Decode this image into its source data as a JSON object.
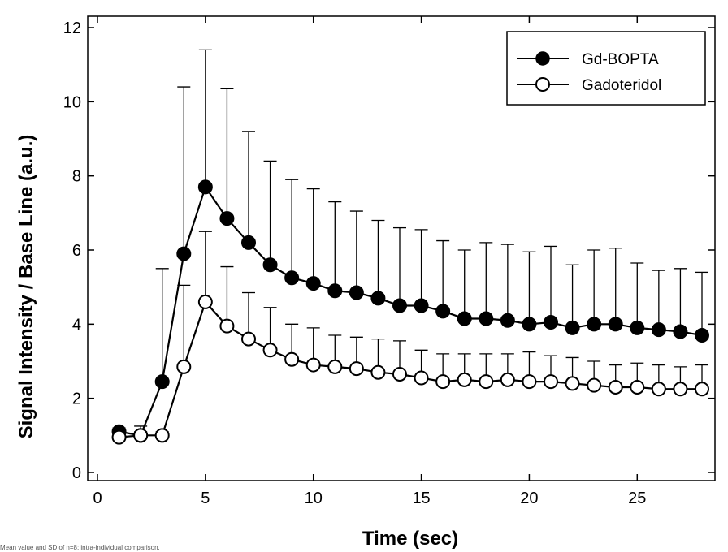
{
  "chart_data": {
    "type": "line",
    "title": "",
    "xlabel": "Time (sec)",
    "ylabel": "Signal Intensity / Base Line (a.u.)",
    "xlim": [
      0,
      28
    ],
    "ylim": [
      0,
      12
    ],
    "xticks": [
      0,
      5,
      10,
      15,
      20,
      25
    ],
    "yticks": [
      0,
      2,
      4,
      6,
      8,
      10,
      12
    ],
    "grid": false,
    "legend_position": "top-right",
    "series": [
      {
        "name": "Gd-BOPTA",
        "marker": "filled-circle",
        "color": "#000000",
        "x": [
          1,
          2,
          3,
          4,
          5,
          6,
          7,
          8,
          9,
          10,
          11,
          12,
          13,
          14,
          15,
          16,
          17,
          18,
          19,
          20,
          21,
          22,
          23,
          24,
          25,
          26,
          27,
          28
        ],
        "y": [
          1.1,
          1.0,
          2.45,
          5.9,
          7.7,
          6.85,
          6.2,
          5.6,
          5.25,
          5.1,
          4.9,
          4.85,
          4.7,
          4.5,
          4.5,
          4.35,
          4.15,
          4.15,
          4.1,
          4.0,
          4.05,
          3.9,
          4.0,
          4.0,
          3.9,
          3.85,
          3.8,
          3.7
        ],
        "error_upper": [
          1.2,
          1.25,
          5.5,
          10.4,
          11.4,
          10.35,
          9.2,
          8.4,
          7.9,
          7.65,
          7.3,
          7.05,
          6.8,
          6.6,
          6.55,
          6.25,
          6.0,
          6.2,
          6.15,
          5.95,
          6.1,
          5.6,
          6.0,
          6.05,
          5.65,
          5.45,
          5.5,
          5.4
        ]
      },
      {
        "name": "Gadoteridol",
        "marker": "open-circle",
        "color": "#000000",
        "x": [
          1,
          2,
          3,
          4,
          5,
          6,
          7,
          8,
          9,
          10,
          11,
          12,
          13,
          14,
          15,
          16,
          17,
          18,
          19,
          20,
          21,
          22,
          23,
          24,
          25,
          26,
          27,
          28
        ],
        "y": [
          0.95,
          1.0,
          1.0,
          2.85,
          4.6,
          3.95,
          3.6,
          3.3,
          3.05,
          2.9,
          2.85,
          2.8,
          2.7,
          2.65,
          2.55,
          2.45,
          2.5,
          2.45,
          2.5,
          2.45,
          2.45,
          2.4,
          2.35,
          2.3,
          2.3,
          2.25,
          2.25,
          2.25
        ],
        "error_upper": [
          1.1,
          1.1,
          1.1,
          5.05,
          6.5,
          5.55,
          4.85,
          4.45,
          4.0,
          3.9,
          3.7,
          3.65,
          3.6,
          3.55,
          3.3,
          3.2,
          3.2,
          3.2,
          3.2,
          3.25,
          3.15,
          3.1,
          3.0,
          2.9,
          2.95,
          2.9,
          2.85,
          2.9
        ]
      }
    ]
  },
  "footnote": "Mean value and SD of n=8; intra-individual comparison."
}
